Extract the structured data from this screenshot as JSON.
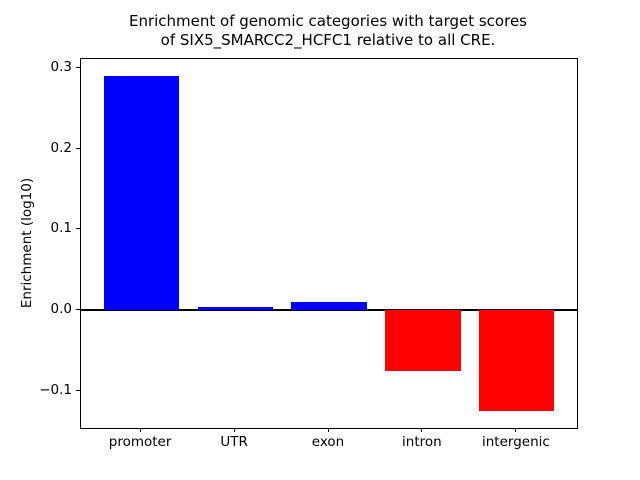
{
  "figure": {
    "background": "#ffffff",
    "text_color": "#000000"
  },
  "chart_data": {
    "type": "bar",
    "title": "Enrichment of genomic categories with target scores\nof SIX5_SMARCC2_HCFC1 relative to all CRE.",
    "title_lines": [
      "Enrichment of genomic categories with target scores",
      "of SIX5_SMARCC2_HCFC1 relative to all CRE."
    ],
    "xlabel": "",
    "ylabel": "Enrichment (log10)",
    "categories": [
      "promoter",
      "UTR",
      "exon",
      "intron",
      "intergenic"
    ],
    "values": [
      0.29,
      0.004,
      0.01,
      -0.075,
      -0.125
    ],
    "bar_colors": [
      "#0000ff",
      "#0000ff",
      "#0000ff",
      "#ff0000",
      "#ff0000"
    ],
    "positive_color": "#0000ff",
    "negative_color": "#ff0000",
    "yticks": [
      0.3,
      0.2,
      0.1,
      0.0,
      -0.1
    ],
    "ytick_labels": [
      "0.3",
      "0.2",
      "0.1",
      "0.0",
      "−0.1"
    ],
    "ylim": [
      -0.146,
      0.311
    ],
    "bar_width_fraction": 0.8,
    "grid": false,
    "legend": null,
    "zero_line": true
  }
}
